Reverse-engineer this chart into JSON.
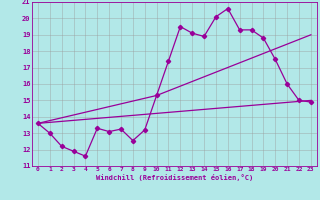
{
  "xlabel": "Windchill (Refroidissement éolien,°C)",
  "bg_color": "#b2e8e8",
  "line_color": "#990099",
  "grid_color": "#999999",
  "xlim": [
    -0.5,
    23.5
  ],
  "ylim": [
    11,
    21
  ],
  "xticks": [
    0,
    1,
    2,
    3,
    4,
    5,
    6,
    7,
    8,
    9,
    10,
    11,
    12,
    13,
    14,
    15,
    16,
    17,
    18,
    19,
    20,
    21,
    22,
    23
  ],
  "yticks": [
    11,
    12,
    13,
    14,
    15,
    16,
    17,
    18,
    19,
    20,
    21
  ],
  "line1_x": [
    0,
    1,
    2,
    3,
    4,
    5,
    6,
    7,
    8,
    9,
    10,
    11,
    12,
    13,
    14,
    15,
    16,
    17,
    18,
    19,
    20,
    21,
    22,
    23
  ],
  "line1_y": [
    13.6,
    13.0,
    12.2,
    11.9,
    11.6,
    13.3,
    13.1,
    13.25,
    12.55,
    13.2,
    15.3,
    17.4,
    19.5,
    19.1,
    18.9,
    20.1,
    20.6,
    19.3,
    19.3,
    18.8,
    17.5,
    16.0,
    15.0,
    14.9
  ],
  "line2_x": [
    0,
    10,
    23
  ],
  "line2_y": [
    13.6,
    15.3,
    19.0
  ],
  "line3_x": [
    0,
    23
  ],
  "line3_y": [
    13.6,
    15.0
  ],
  "marker_x": [
    0,
    1,
    2,
    3,
    4,
    5,
    6,
    7,
    8,
    9,
    10,
    11,
    12,
    13,
    14,
    15,
    16,
    17,
    18,
    19,
    20,
    21,
    22,
    23
  ],
  "marker_y": [
    13.6,
    13.0,
    12.2,
    11.9,
    11.6,
    13.3,
    13.1,
    13.25,
    12.55,
    13.2,
    15.3,
    17.4,
    19.5,
    19.1,
    18.9,
    20.1,
    20.6,
    19.3,
    19.3,
    18.8,
    17.5,
    16.0,
    15.0,
    14.9
  ]
}
